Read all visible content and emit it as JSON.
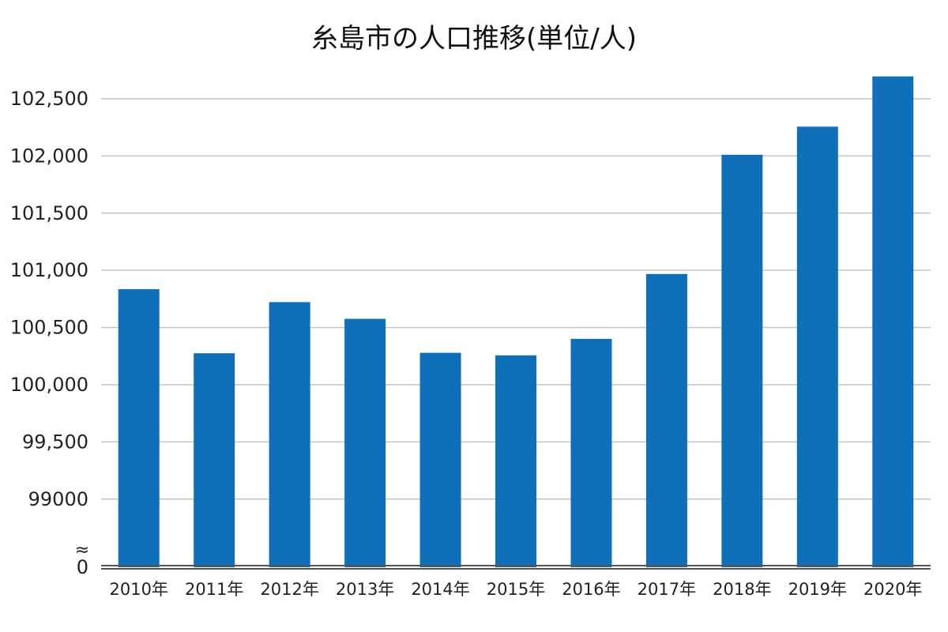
{
  "chart_data": {
    "type": "bar",
    "title": "糸島市の人口推移(単位/人)",
    "xlabel": "",
    "ylabel": "",
    "categories": [
      "2010年",
      "2011年",
      "2012年",
      "2013年",
      "2014年",
      "2015年",
      "2016年",
      "2017年",
      "2018年",
      "2019年",
      "2020年"
    ],
    "values": [
      100835,
      100275,
      100722,
      100576,
      100279,
      100257,
      100401,
      100968,
      102010,
      102256,
      102695
    ],
    "bar_color": "#0f6fb8",
    "grid": true,
    "legend": "none",
    "y_axis_break": true,
    "y_baseline_label": "0",
    "y_break_label": "≈",
    "y_ticks": [
      {
        "value": 99000,
        "label": "99000"
      },
      {
        "value": 99500,
        "label": "99,500"
      },
      {
        "value": 100000,
        "label": "100,000"
      },
      {
        "value": 100500,
        "label": "100,500"
      },
      {
        "value": 101000,
        "label": "101,000"
      },
      {
        "value": 101500,
        "label": "101,500"
      },
      {
        "value": 102000,
        "label": "102,000"
      },
      {
        "value": 102500,
        "label": "102,500"
      }
    ],
    "ylim": [
      98750,
      102700
    ]
  }
}
